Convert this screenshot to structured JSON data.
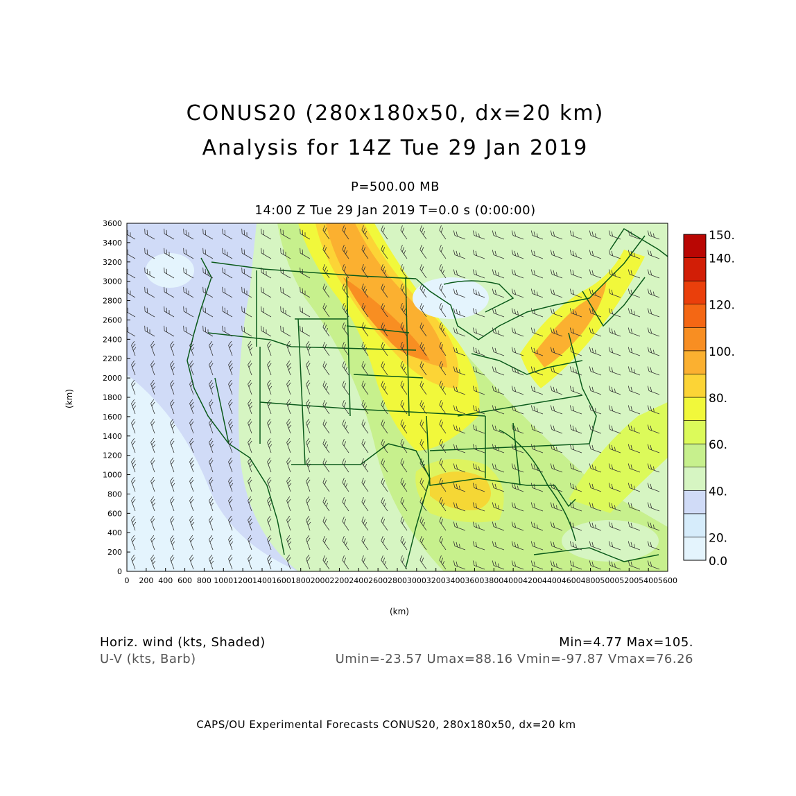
{
  "title": {
    "line1": "CONUS20 (280x180x50, dx=20 km)",
    "line2": "Analysis for 14Z Tue 29 Jan 2019"
  },
  "subtitle": {
    "level": "P=500.00 MB",
    "time": "14:00 Z Tue 29 Jan 2019   T=0.0 s (0:00:00)"
  },
  "axes": {
    "xlabel": "(km)",
    "ylabel": "(km)",
    "xrange": [
      0,
      5600
    ],
    "yrange": [
      0,
      3600
    ],
    "xticks": [
      "0",
      "200",
      "400",
      "600",
      "800",
      "1000",
      "1200",
      "1400",
      "1600",
      "1800",
      "2000",
      "2200",
      "2400",
      "2600",
      "2800",
      "3000",
      "3200",
      "3400",
      "3600",
      "3800",
      "4000",
      "4200",
      "4400",
      "4600",
      "4800",
      "5000",
      "5200",
      "5400",
      "5600"
    ],
    "yticks": [
      "0",
      "200",
      "400",
      "600",
      "800",
      "1000",
      "1200",
      "1400",
      "1600",
      "1800",
      "2000",
      "2200",
      "2400",
      "2600",
      "2800",
      "3000",
      "3200",
      "3400",
      "3600"
    ]
  },
  "colorbar": {
    "labels": [
      "150.",
      "140.",
      "120.",
      "100.",
      "80.",
      "60.",
      "40.",
      "20.",
      "0.0"
    ],
    "colors": [
      "#e4f4fd",
      "#d6ecfb",
      "#d0dbf7",
      "#d6f5c2",
      "#c7f08d",
      "#dcfa5a",
      "#f1f83b",
      "#fcd436",
      "#fbb030",
      "#f88e22",
      "#f46714",
      "#ea3f0b",
      "#d21e06",
      "#b90603"
    ]
  },
  "info": {
    "shaded": "Horiz. wind (kts, Shaded)",
    "barb": "U-V (kts, Barb)",
    "minmax": "Min=4.77  Max=105.",
    "uvrange": "Umin=-23.57 Umax=88.16 Vmin=-97.87 Vmax=76.26"
  },
  "footer": "CAPS/OU Experimental Forecasts  CONUS20, 280x180x50, dx=20 km"
}
